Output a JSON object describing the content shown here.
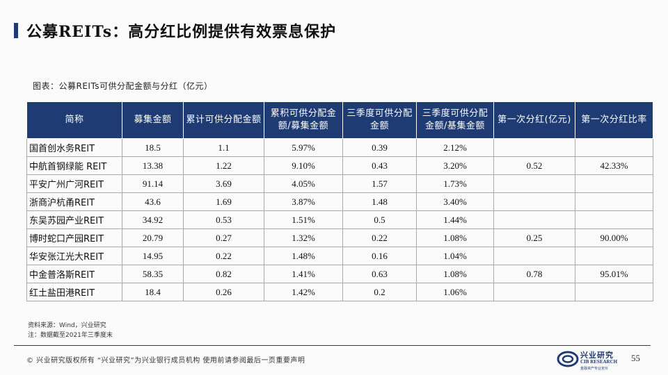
{
  "title": "公募REITs：高分红比例提供有效票息保护",
  "caption": "图表：公募REITs可供分配金额与分红（亿元）",
  "table": {
    "headers": [
      "简称",
      "募集金额",
      "累计可供分配金额",
      "累积可供分配金额/募集金额",
      "三季度可供分配金额",
      "三季度可供分配金额/基集金额",
      "第一次分红(亿元)",
      "第一次分红比率"
    ],
    "rows": [
      [
        "国首创水务REIT",
        "18.5",
        "1.1",
        "5.97%",
        "0.39",
        "2.12%"
      ],
      [
        "中航首钢绿能 REIT",
        "13.38",
        "1.22",
        "9.10%",
        "0.43",
        "3.20%"
      ],
      [
        "平安广州广河REIT",
        "91.14",
        "3.69",
        "4.05%",
        "1.57",
        "1.73%"
      ],
      [
        "浙商沪杭甬REIT",
        "43.6",
        "1.69",
        "3.87%",
        "1.48",
        "3.40%"
      ],
      [
        "东吴苏园产业REIT",
        "34.92",
        "0.53",
        "1.51%",
        "0.5",
        "1.44%"
      ],
      [
        "博时蛇口产园REIT",
        "20.79",
        "0.27",
        "1.32%",
        "0.22",
        "1.08%"
      ],
      [
        "华安张江光大REIT",
        "14.95",
        "0.22",
        "1.48%",
        "0.16",
        "1.04%"
      ],
      [
        "中金普洛斯REIT",
        "58.35",
        "0.82",
        "1.41%",
        "0.63",
        "1.08%"
      ],
      [
        "红土盐田港REIT",
        "18.4",
        "0.26",
        "1.42%",
        "0.2",
        "1.06%"
      ]
    ],
    "dividends": [
      {
        "amount": "",
        "ratio": ""
      },
      {
        "amount": "0.52",
        "ratio": "42.33%"
      },
      {
        "amount": "",
        "ratio": ""
      },
      {
        "amount": "",
        "ratio": ""
      },
      {
        "amount": "",
        "ratio": ""
      },
      {
        "amount": "0.25",
        "ratio": "90.00%"
      },
      {
        "amount": "",
        "ratio": ""
      },
      {
        "amount": "0.78",
        "ratio": "95.01%"
      },
      {
        "amount": "",
        "ratio": ""
      }
    ]
  },
  "source": {
    "line1": "资料来源：Wind，兴业研究",
    "line2": "注：数据截至2021年三季度末"
  },
  "footer": {
    "text": "©  兴业研究版权所有    “兴业研究”为兴业银行成员机构    使用前请参阅最后一页重要声明",
    "logo_cn": "兴业研究",
    "logo_en": "CIB RESEARCH",
    "logo_sub": "金融资产专业定价",
    "page": "55"
  },
  "colors": {
    "header_bg": "#1f3b73",
    "accent": "#1f3b73"
  }
}
